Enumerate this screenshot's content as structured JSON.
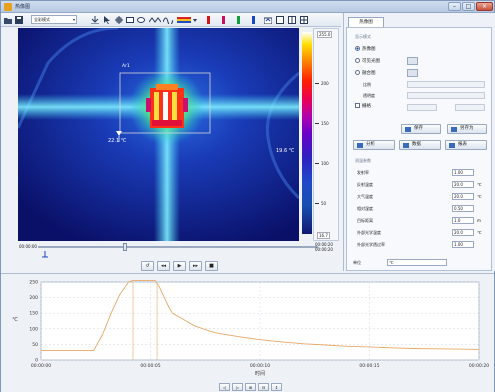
{
  "window": {
    "title": "热像图",
    "min": "–",
    "max": "□",
    "close": "×"
  },
  "toolbar": {
    "mode": "全彩模式",
    "icons": [
      "open-icon",
      "save-icon",
      "measure-cursor-icon",
      "pointer-icon",
      "crosshair-icon",
      "rect-icon",
      "ellipse-icon",
      "line-icon",
      "palette-icon",
      "red-marker-icon",
      "red-marker-2-icon",
      "green-marker-icon",
      "blue-marker-icon",
      "snapshot-icon",
      "layout-1-icon",
      "layout-2-icon",
      "layout-3-icon"
    ]
  },
  "thermal": {
    "roi_label": "Ar1",
    "min_temp": "22.1 ℃",
    "cursor_temp": "19.6 ℃"
  },
  "scale": {
    "max": "255.0",
    "min": "16.7",
    "ticks": [
      "200",
      "150",
      "100",
      "50"
    ]
  },
  "timeline": {
    "start": "00:00:00",
    "end_top": "00:00:20",
    "end_bottom": "00:00:20"
  },
  "playback": {
    "buttons": [
      "↺",
      "◂◂",
      "▶",
      "▸▸",
      "■"
    ]
  },
  "panel": {
    "tab": "热像图",
    "section_display": "显示模式",
    "radio_thermal": "热像图",
    "radio_visible": "可见光图",
    "radio_fusion": "融合图",
    "field_ratio": "比例",
    "field_transparency": "透明度",
    "checkbox_grid": "栅格",
    "btn_save": "保存",
    "btn_save_as": "另存为",
    "btn_analyze": "分析",
    "btn_data": "数据",
    "btn_report": "报表",
    "section_params": "测温参数",
    "params": [
      {
        "label": "发射率",
        "value": "1.00",
        "unit": ""
      },
      {
        "label": "反射温度",
        "value": "20.0",
        "unit": "℃"
      },
      {
        "label": "大气温度",
        "value": "20.0",
        "unit": "℃"
      },
      {
        "label": "相对湿度",
        "value": "0.50",
        "unit": ""
      },
      {
        "label": "目标距离",
        "value": "1.0",
        "unit": "m"
      },
      {
        "label": "外部光学温度",
        "value": "20.0",
        "unit": "℃"
      },
      {
        "label": "外部光学透过率",
        "value": "1.00",
        "unit": ""
      }
    ],
    "bottom_label": "单位",
    "bottom_value": "℃"
  },
  "chart_data": {
    "type": "line",
    "title": "",
    "xlabel": "时间",
    "ylabel": "℃",
    "ylim": [
      0,
      250
    ],
    "yticks": [
      "250",
      "200",
      "150",
      "100",
      "50",
      "0"
    ],
    "xticks": [
      "00:00:00",
      "00:00:05",
      "00:00:10",
      "00:00:15",
      "00:00:20"
    ],
    "series": [
      {
        "name": "",
        "color": "#e8a868",
        "x": [
          0,
          0.2,
          0.4,
          0.6,
          0.8,
          1.0,
          1.2,
          1.4,
          1.6,
          1.8,
          2.0,
          2.2,
          2.4,
          2.8,
          3.2,
          3.6,
          4.0,
          4.2,
          4.4,
          4.6,
          4.8,
          5.0,
          5.2,
          5.4,
          5.6,
          5.8,
          6.0,
          6.5,
          7.0,
          7.5,
          8.0,
          9.0,
          10.0,
          11.0,
          12.0,
          13.0,
          14.0,
          15.0,
          16.0,
          17.0,
          18.0,
          19.0,
          20.0
        ],
        "y": [
          30,
          30,
          30,
          30,
          30,
          30,
          30,
          30,
          30,
          30,
          30,
          30,
          30,
          80,
          150,
          210,
          250,
          262,
          270,
          274,
          275,
          275,
          275,
          235,
          205,
          175,
          150,
          130,
          110,
          97,
          87,
          75,
          65,
          58,
          52,
          48,
          44,
          42,
          39,
          37,
          36,
          35,
          34
        ]
      }
    ]
  },
  "zoom": {
    "buttons": [
      "◁",
      "▷",
      "⊞",
      "⊟",
      "↕"
    ]
  }
}
